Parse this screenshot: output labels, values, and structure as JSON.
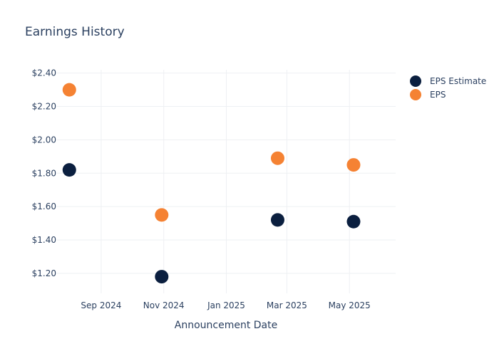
{
  "chart_data": {
    "type": "scatter",
    "title": "Earnings History",
    "xlabel": "Announcement Date",
    "ylabel": "",
    "x_ticks": [
      "Sep 2024",
      "Nov 2024",
      "Jan 2025",
      "Mar 2025",
      "May 2025"
    ],
    "y_ticks": [
      "$1.20",
      "$1.40",
      "$1.60",
      "$1.80",
      "$2.00",
      "$2.20",
      "$2.40"
    ],
    "ylim": [
      1.08,
      2.42
    ],
    "xlim": [
      "2024-07-20",
      "2025-06-15"
    ],
    "grid": true,
    "legend_position": "top-right",
    "series": [
      {
        "name": "EPS Estimate",
        "color": "#0b1f3f",
        "points": [
          {
            "x": "2024-08-01",
            "y": 1.82
          },
          {
            "x": "2024-10-30",
            "y": 1.18
          },
          {
            "x": "2025-02-20",
            "y": 1.52
          },
          {
            "x": "2025-05-05",
            "y": 1.51
          }
        ]
      },
      {
        "name": "EPS",
        "color": "#f58233",
        "points": [
          {
            "x": "2024-08-01",
            "y": 2.3
          },
          {
            "x": "2024-10-30",
            "y": 1.55
          },
          {
            "x": "2025-02-20",
            "y": 1.89
          },
          {
            "x": "2025-05-05",
            "y": 1.85
          }
        ]
      }
    ]
  }
}
